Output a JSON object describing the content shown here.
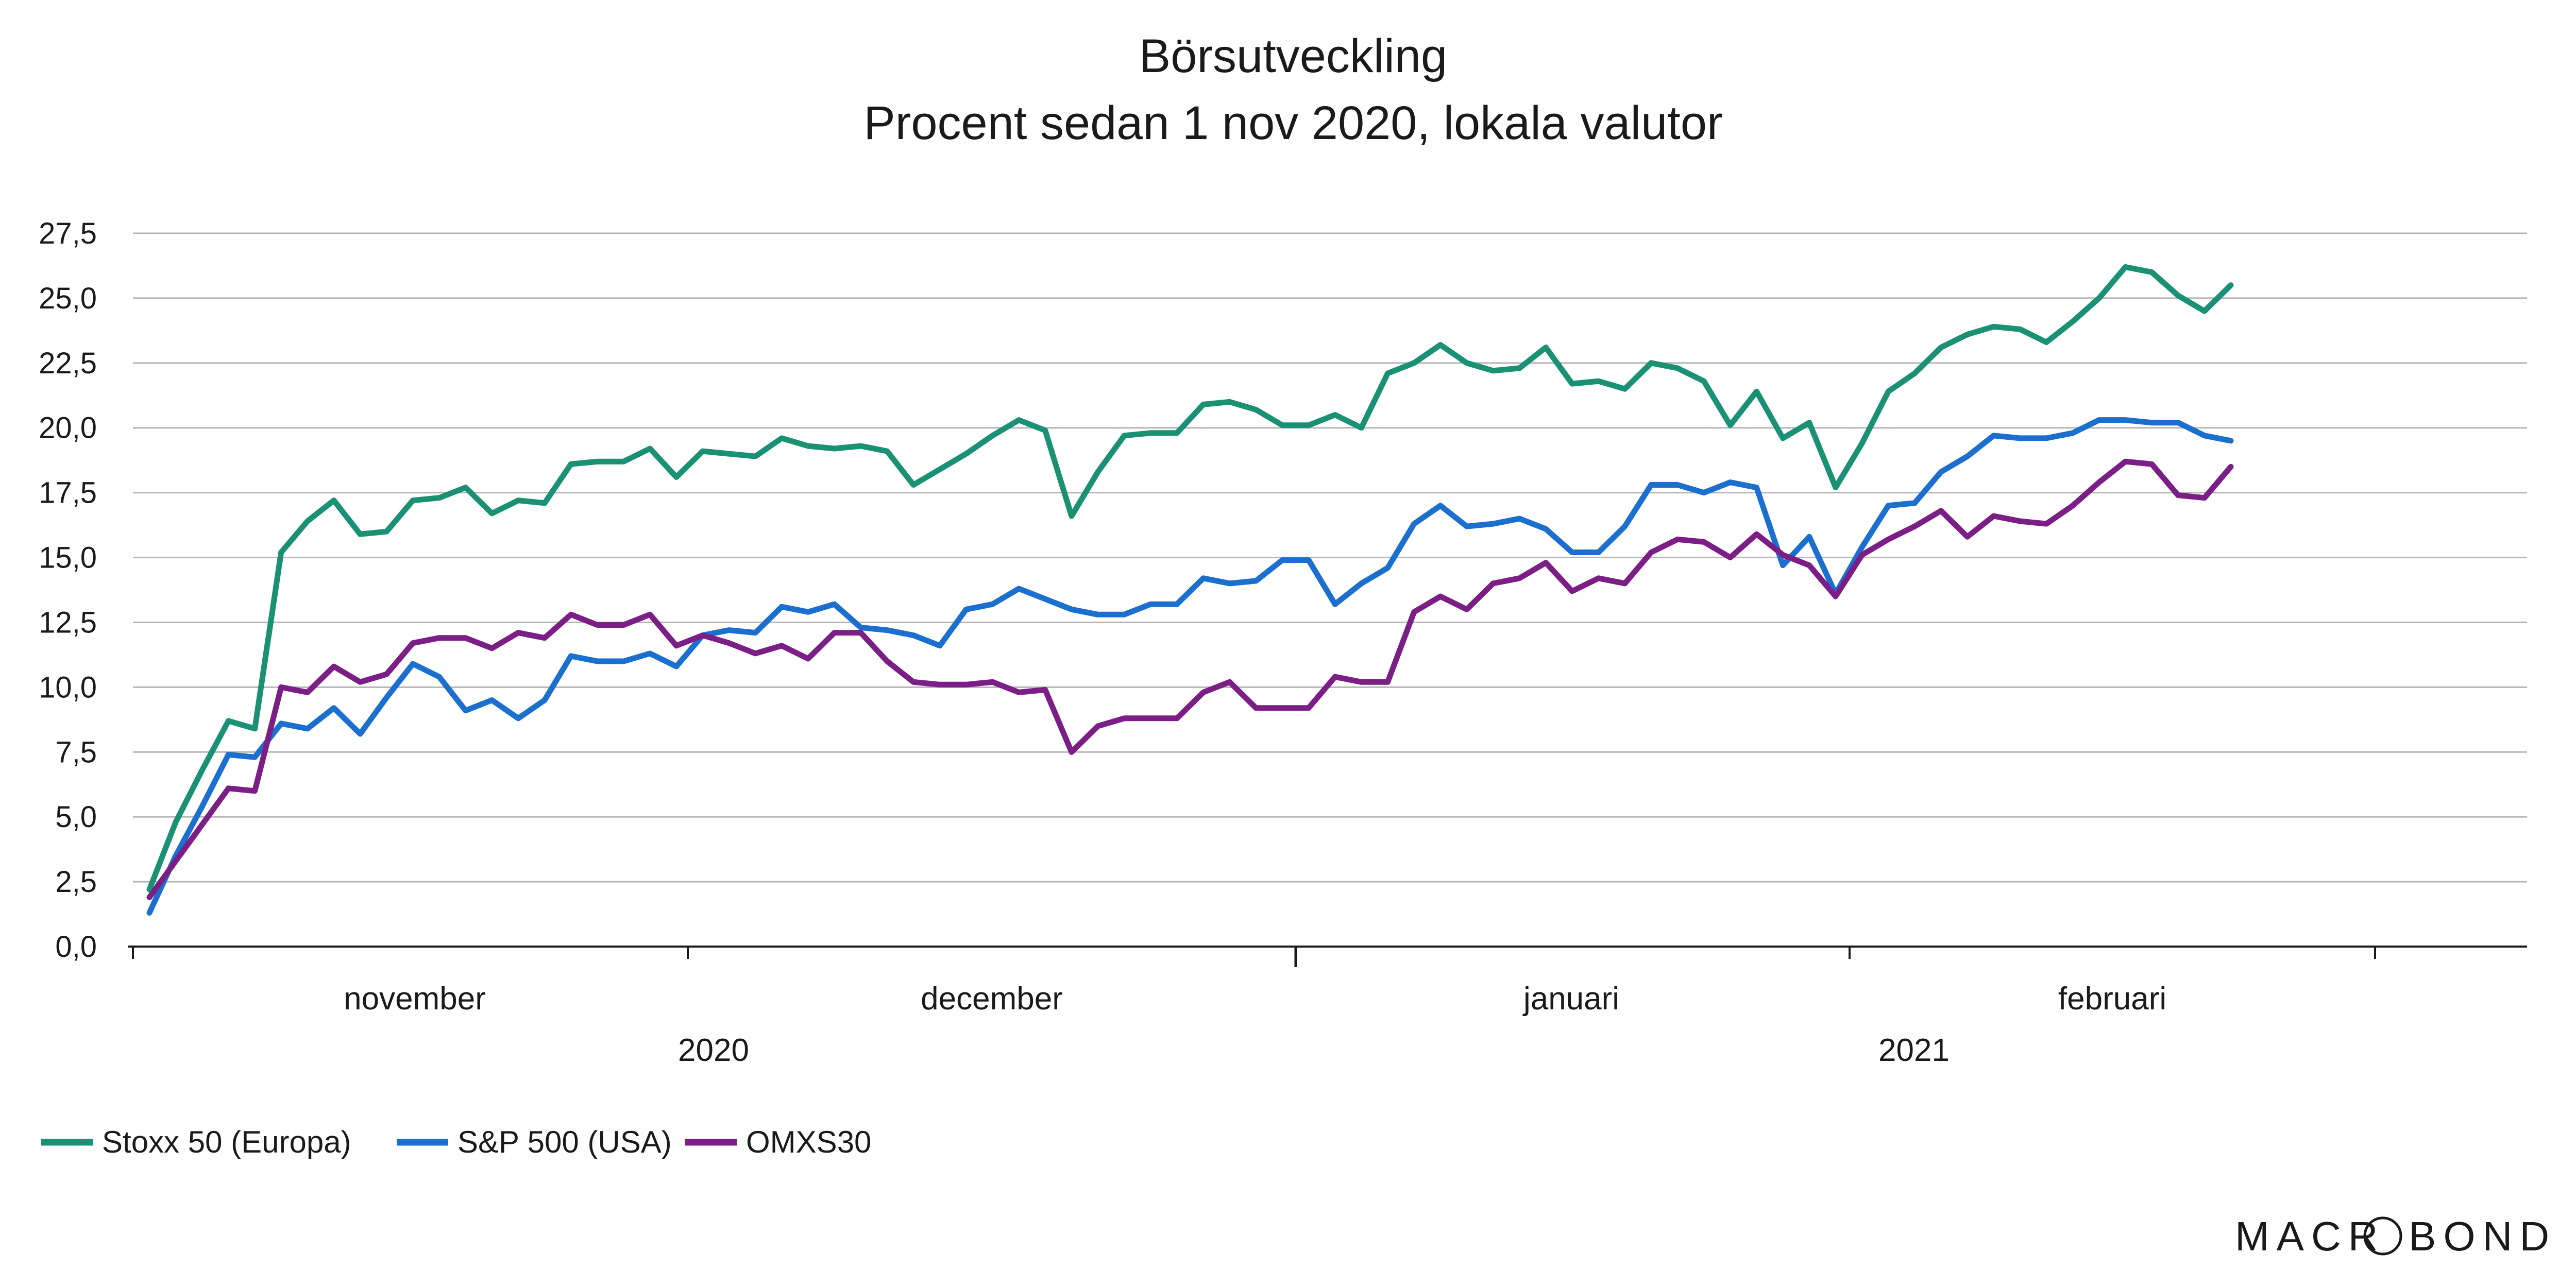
{
  "chart_data": {
    "type": "line",
    "title": "Börsutveckling",
    "subtitle": "Procent sedan 1 nov 2020, lokala valutor",
    "ylim": [
      0,
      27.5
    ],
    "yticks": [
      "0,0",
      "2,5",
      "5,0",
      "7,5",
      "10,0",
      "12,5",
      "15,0",
      "17,5",
      "20,0",
      "22,5",
      "25,0",
      "27,5"
    ],
    "grid": true,
    "month_labels": [
      "november",
      "december",
      "januari",
      "februari"
    ],
    "year_labels": [
      "2020",
      "2021"
    ],
    "legend_placement": "bottom-left",
    "series": [
      {
        "name": "Stoxx 50 (Europa)",
        "color": "#1a9174",
        "values": [
          2.2,
          4.8,
          6.8,
          8.7,
          8.4,
          15.2,
          16.4,
          17.2,
          15.9,
          16.0,
          17.2,
          17.3,
          17.7,
          16.7,
          17.2,
          17.1,
          18.6,
          18.7,
          18.7,
          19.2,
          18.1,
          19.1,
          19.0,
          18.9,
          19.6,
          19.3,
          19.2,
          19.3,
          19.1,
          17.8,
          18.4,
          19.0,
          19.7,
          20.3,
          19.9,
          16.6,
          18.3,
          19.7,
          19.8,
          19.8,
          20.9,
          21.0,
          20.7,
          20.1,
          20.1,
          20.5,
          20.0,
          22.1,
          22.5,
          23.2,
          22.5,
          22.2,
          22.3,
          23.1,
          21.7,
          21.8,
          21.5,
          22.5,
          22.3,
          21.8,
          20.1,
          21.4,
          19.6,
          20.2,
          17.7,
          19.4,
          21.4,
          22.1,
          23.1,
          23.6,
          23.9,
          23.8,
          23.3,
          24.1,
          25.0,
          26.2,
          26.0,
          25.1,
          24.5,
          25.5
        ]
      },
      {
        "name": "S&P 500 (USA)",
        "color": "#1a6fcf",
        "values": [
          1.3,
          3.5,
          5.4,
          7.4,
          7.3,
          8.6,
          8.4,
          9.2,
          8.2,
          9.6,
          10.9,
          10.4,
          9.1,
          9.5,
          8.8,
          9.5,
          11.2,
          11.0,
          11.0,
          11.3,
          10.8,
          12.0,
          12.2,
          12.1,
          13.1,
          12.9,
          13.2,
          12.3,
          12.2,
          12.0,
          11.6,
          13.0,
          13.2,
          13.8,
          13.4,
          13.0,
          12.8,
          12.8,
          13.2,
          13.2,
          14.2,
          14.0,
          14.1,
          14.9,
          14.9,
          13.2,
          14.0,
          14.6,
          16.3,
          17.0,
          16.2,
          16.3,
          16.5,
          16.1,
          15.2,
          15.2,
          16.2,
          17.8,
          17.8,
          17.5,
          17.9,
          17.7,
          14.7,
          15.8,
          13.6,
          15.4,
          17.0,
          17.1,
          18.3,
          18.9,
          19.7,
          19.6,
          19.6,
          19.8,
          20.3,
          20.3,
          20.2,
          20.2,
          19.7,
          19.5
        ]
      },
      {
        "name": "OMXS30",
        "color": "#7b1f87",
        "values": [
          1.9,
          3.3,
          4.7,
          6.1,
          6.0,
          10.0,
          9.8,
          10.8,
          10.2,
          10.5,
          11.7,
          11.9,
          11.9,
          11.5,
          12.1,
          11.9,
          12.8,
          12.4,
          12.4,
          12.8,
          11.6,
          12.0,
          11.7,
          11.3,
          11.6,
          11.1,
          12.1,
          12.1,
          11.0,
          10.2,
          10.1,
          10.1,
          10.2,
          9.8,
          9.9,
          7.5,
          8.5,
          8.8,
          8.8,
          8.8,
          9.8,
          10.2,
          9.2,
          9.2,
          9.2,
          10.4,
          10.2,
          10.2,
          12.9,
          13.5,
          13.0,
          14.0,
          14.2,
          14.8,
          13.7,
          14.2,
          14.0,
          15.2,
          15.7,
          15.6,
          15.0,
          15.9,
          15.1,
          14.7,
          13.5,
          15.1,
          15.7,
          16.2,
          16.8,
          15.8,
          16.6,
          16.4,
          16.3,
          17.0,
          17.9,
          18.7,
          18.6,
          17.4,
          17.3,
          18.5
        ]
      }
    ]
  },
  "brand": {
    "part1": "MACR",
    "part2": "BOND"
  }
}
